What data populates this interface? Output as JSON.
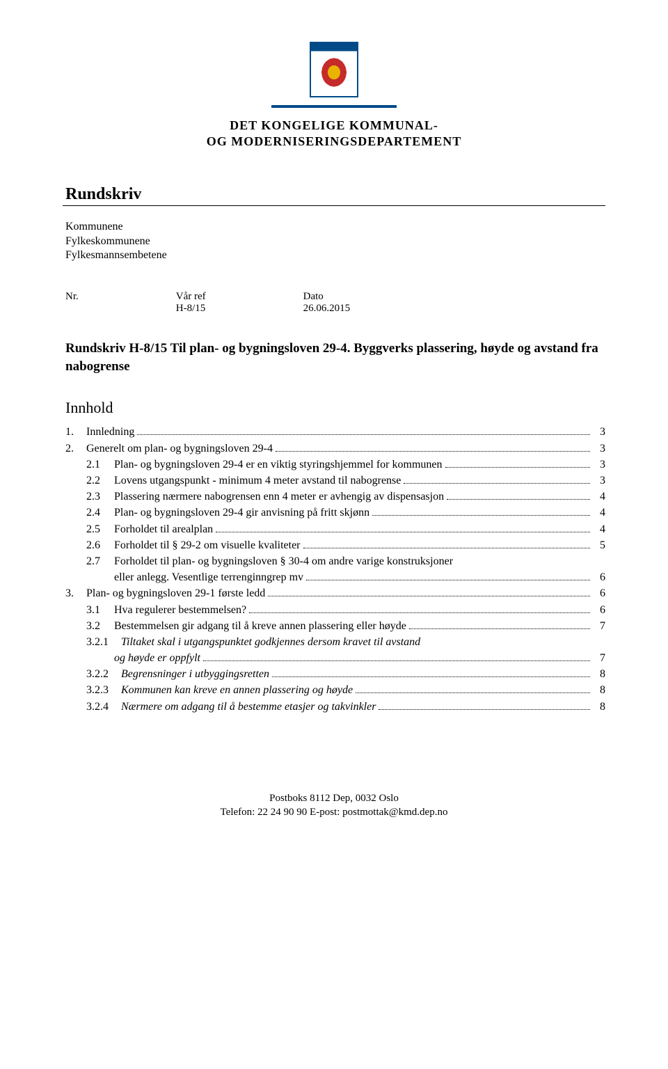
{
  "header": {
    "org_line1": "DET KONGELIGE KOMMUNAL-",
    "org_line2": "OG MODERNISERINGSDEPARTEMENT"
  },
  "doc_type": "Rundskriv",
  "recipients": [
    "Kommunene",
    "Fylkeskommunene",
    "Fylkesmannsembetene"
  ],
  "meta": {
    "nr_label": "Nr.",
    "nr_value": "",
    "ref_label": "Vår ref",
    "ref_value": "H-8/15",
    "date_label": "Dato",
    "date_value": "26.06.2015"
  },
  "title": "Rundskriv H-8/15 Til plan- og bygningsloven 29-4. Byggverks plassering, høyde og avstand fra nabogrense",
  "toc_heading": "Innhold",
  "toc": [
    {
      "level": 1,
      "num": "1.",
      "text": "Innledning",
      "page": "3",
      "italic": false
    },
    {
      "level": 1,
      "num": "2.",
      "text": "Generelt om plan- og bygningsloven 29-4",
      "page": "3",
      "italic": false
    },
    {
      "level": 2,
      "num": "2.1",
      "text": "Plan- og bygningsloven 29-4 er en viktig styringshjemmel for kommunen",
      "page": "3",
      "italic": false
    },
    {
      "level": 2,
      "num": "2.2",
      "text": "Lovens utgangspunkt - minimum 4 meter avstand til nabogrense",
      "page": "3",
      "italic": false
    },
    {
      "level": 2,
      "num": "2.3",
      "text": "Plassering nærmere nabogrensen enn 4 meter er avhengig av dispensasjon",
      "page": "4",
      "italic": false
    },
    {
      "level": 2,
      "num": "2.4",
      "text": "Plan- og bygningsloven 29-4 gir anvisning på fritt skjønn",
      "page": "4",
      "italic": false
    },
    {
      "level": 2,
      "num": "2.5",
      "text": "Forholdet til arealplan",
      "page": "4",
      "italic": false
    },
    {
      "level": 2,
      "num": "2.6",
      "text": "Forholdet til § 29-2 om visuelle kvaliteter",
      "page": "5",
      "italic": false
    },
    {
      "level": 2,
      "num": "2.7",
      "text": "Forholdet til plan- og bygningsloven § 30-4 om andre varige konstruksjoner",
      "cont": "eller anlegg. Vesentlige terrenginngrep mv",
      "page": "6",
      "italic": false
    },
    {
      "level": 1,
      "num": "3.",
      "text": "Plan- og bygningsloven 29-1 første ledd",
      "page": "6",
      "italic": false
    },
    {
      "level": 2,
      "num": "3.1",
      "text": "Hva regulerer bestemmelsen?",
      "page": "6",
      "italic": false
    },
    {
      "level": 2,
      "num": "3.2",
      "text": "Bestemmelsen gir adgang til å kreve annen plassering eller høyde",
      "page": "7",
      "italic": false
    },
    {
      "level": 3,
      "num": "3.2.1",
      "text": "Tiltaket skal i utgangspunktet godkjennes dersom  kravet til avstand",
      "cont": "og høyde er oppfylt",
      "page": "7",
      "italic": true
    },
    {
      "level": 3,
      "num": "3.2.2",
      "text": "Begrensninger i utbyggingsretten",
      "page": "8",
      "italic": true
    },
    {
      "level": 3,
      "num": "3.2.3",
      "text": "Kommunen kan kreve en annen plassering og høyde",
      "page": "8",
      "italic": true
    },
    {
      "level": 3,
      "num": "3.2.4",
      "text": "Nærmere om adgang til å bestemme etasjer og takvinkler",
      "page": "8",
      "italic": true
    }
  ],
  "footer": {
    "line1": "Postboks 8112 Dep, 0032 Oslo",
    "line2": "Telefon: 22 24 90 90 E-post: postmottak@kmd.dep.no"
  },
  "colors": {
    "text": "#000000",
    "bg": "#ffffff",
    "accent": "#004b87"
  }
}
